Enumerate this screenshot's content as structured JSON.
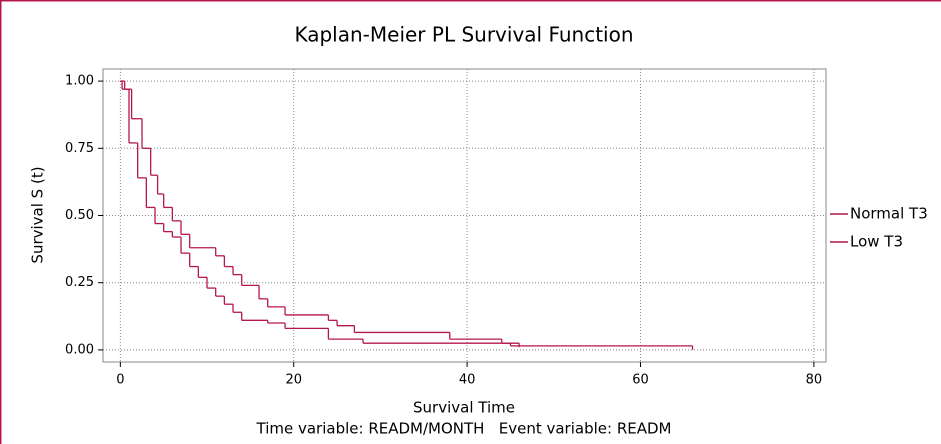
{
  "chart_data": {
    "type": "step",
    "title": "Kaplan-Meier PL Survival Function",
    "xlabel": "Survival Time",
    "ylabel": "Survival S (t)",
    "footnote": "Time variable: READM/MONTH   Event variable: READM",
    "xlim": [
      -2,
      81.4
    ],
    "ylim": [
      -0.045,
      1.045
    ],
    "xticks": [
      0,
      20,
      40,
      60,
      80
    ],
    "yticks": [
      {
        "value": 0,
        "label": "0.00"
      },
      {
        "value": 0.25,
        "label": "0.25"
      },
      {
        "value": 0.5,
        "label": "0.50"
      },
      {
        "value": 0.75,
        "label": "0.75"
      },
      {
        "value": 1,
        "label": "1.00"
      }
    ],
    "grid": true,
    "legend": "right",
    "series": [
      {
        "name": "Normal T3",
        "color": "#b5174b",
        "x": [
          0,
          0.5,
          1.3,
          2.5,
          3.5,
          4.3,
          5,
          6,
          7,
          8,
          11,
          12,
          13,
          14,
          16,
          17,
          19,
          24,
          25,
          27,
          38,
          44,
          46,
          66
        ],
        "values": [
          1,
          0.97,
          0.86,
          0.75,
          0.65,
          0.58,
          0.53,
          0.48,
          0.43,
          0.38,
          0.35,
          0.31,
          0.28,
          0.24,
          0.19,
          0.16,
          0.13,
          0.11,
          0.09,
          0.065,
          0.04,
          0.025,
          0.015,
          0
        ]
      },
      {
        "name": "Low T3",
        "color": "#b5174b",
        "x": [
          0,
          0.2,
          1,
          2,
          3,
          4,
          5,
          6,
          7,
          8,
          9,
          10,
          11,
          12,
          13,
          14,
          17,
          19,
          24,
          28,
          45,
          46
        ],
        "values": [
          1,
          0.97,
          0.77,
          0.64,
          0.53,
          0.47,
          0.44,
          0.42,
          0.36,
          0.31,
          0.27,
          0.23,
          0.2,
          0.17,
          0.14,
          0.11,
          0.1,
          0.08,
          0.04,
          0.025,
          0.015,
          0.01
        ]
      }
    ]
  }
}
